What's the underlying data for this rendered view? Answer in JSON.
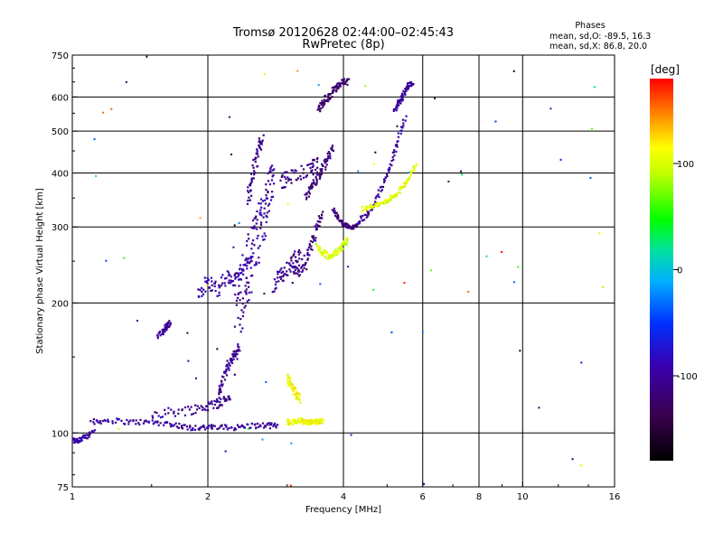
{
  "title": "Tromsø 20120628 02:44:00–02:45:43",
  "subtitle": "RwPretec (8p)",
  "stats": {
    "header": "Phases",
    "o_line": "mean, sd,O: -89.5, 16.3",
    "x_line": "mean, sd,X:  86.8, 20.0"
  },
  "colorbar": {
    "title": "[deg]",
    "range": [
      -180,
      180
    ],
    "ticks": [
      100,
      0,
      -100
    ],
    "tick_labels": [
      "100",
      "0",
      "-100"
    ]
  },
  "colors": {
    "background": "#ffffff",
    "axes": "#000000",
    "o_mode": "#1a3fe0",
    "x_mode": "#e8e800"
  },
  "chart_data": {
    "type": "scatter",
    "title": "Tromsø 20120628 02:44:00–02:45:43",
    "subtitle": "RwPretec (8p)",
    "xlabel": "Frequency [MHz]",
    "ylabel": "Stationary phase Virtual Height [km]",
    "xscale": "log",
    "yscale": "log",
    "xlim": [
      1,
      16
    ],
    "ylim": [
      75,
      750
    ],
    "xticks": [
      1,
      2,
      4,
      6,
      8,
      10,
      16
    ],
    "xtick_labels": [
      "1",
      "2",
      "4",
      "6",
      "8",
      "10",
      "16"
    ],
    "xgrid": [
      2,
      4,
      6,
      8,
      10
    ],
    "yticks": [
      75,
      100,
      200,
      300,
      400,
      500,
      600,
      750
    ],
    "ytick_labels": [
      "75",
      "100",
      "200",
      "300",
      "400",
      "500",
      "600",
      "750"
    ],
    "ygrid": [
      100,
      200,
      300,
      400,
      500,
      600
    ],
    "color_variable": "phase [deg]",
    "traces": [
      {
        "f": [
          1.0,
          1.02,
          1.05,
          1.08,
          1.12
        ],
        "h": [
          96,
          96,
          97,
          98,
          103
        ],
        "phase": -95,
        "spread": 1.5
      },
      {
        "f": [
          1.1,
          1.2,
          1.35,
          1.5,
          1.65,
          1.8,
          1.95,
          2.1,
          2.3,
          2.5,
          2.7,
          2.85
        ],
        "h": [
          106,
          107,
          106,
          106,
          105,
          103,
          103,
          103,
          103,
          104,
          104,
          104
        ],
        "phase": -100,
        "spread": 1.5
      },
      {
        "f": [
          1.5,
          1.7,
          1.9,
          2.05,
          2.15,
          2.25
        ],
        "h": [
          111,
          112,
          114,
          116,
          118,
          122
        ],
        "phase": -105,
        "spread": 3
      },
      {
        "f": [
          2.1,
          2.15,
          2.2,
          2.25,
          2.3,
          2.35
        ],
        "h": [
          120,
          130,
          140,
          148,
          152,
          158
        ],
        "phase": -105,
        "spread": 4
      },
      {
        "f": [
          1.55,
          1.6,
          1.62,
          1.65
        ],
        "h": [
          168,
          172,
          176,
          181
        ],
        "phase": -100,
        "spread": 3
      },
      {
        "f": [
          1.9,
          2.0,
          2.1,
          2.2,
          2.3,
          2.4,
          2.5
        ],
        "h": [
          210,
          225,
          215,
          230,
          225,
          240,
          250
        ],
        "phase": -95,
        "spread": 8
      },
      {
        "f": [
          2.3,
          2.35,
          2.4,
          2.45,
          2.5,
          2.55,
          2.6,
          2.65,
          2.7,
          2.75,
          2.8
        ],
        "h": [
          180,
          200,
          220,
          240,
          260,
          280,
          300,
          320,
          340,
          370,
          400
        ],
        "phase": -100,
        "spread": 45
      },
      {
        "f": [
          2.45,
          2.5,
          2.55,
          2.6,
          2.65
        ],
        "h": [
          350,
          380,
          420,
          460,
          490
        ],
        "phase": -110,
        "spread": 20
      },
      {
        "f": [
          2.8,
          2.9,
          3.0,
          3.1,
          3.2
        ],
        "h": [
          220,
          230,
          240,
          250,
          260
        ],
        "phase": -105,
        "spread": 10
      },
      {
        "f": [
          2.9,
          3.0,
          3.2,
          3.4,
          3.5
        ],
        "h": [
          380,
          390,
          400,
          410,
          420
        ],
        "phase": -110,
        "spread": 15
      },
      {
        "f": [
          3.1,
          3.2,
          3.3,
          3.4,
          3.5,
          3.6
        ],
        "h": [
          230,
          240,
          250,
          270,
          300,
          320
        ],
        "phase": -115,
        "spread": 10
      },
      {
        "f": [
          3.3,
          3.4,
          3.5,
          3.6,
          3.7,
          3.8
        ],
        "h": [
          350,
          370,
          390,
          410,
          430,
          460
        ],
        "phase": -120,
        "spread": 10
      },
      {
        "f": [
          3.5,
          3.6,
          3.7,
          3.8,
          3.9,
          4.0,
          4.1
        ],
        "h": [
          560,
          580,
          600,
          620,
          640,
          650,
          650
        ],
        "phase": -125,
        "spread": 12
      },
      {
        "f": [
          3.8,
          3.9,
          4.0,
          4.1,
          4.2,
          4.3
        ],
        "h": [
          330,
          315,
          305,
          300,
          300,
          302
        ],
        "phase": -115,
        "spread": 3
      },
      {
        "f": [
          4.3,
          4.5,
          4.7,
          4.9,
          5.1,
          5.3,
          5.5
        ],
        "h": [
          305,
          320,
          340,
          380,
          420,
          480,
          540
        ],
        "phase": -100,
        "spread": 6
      },
      {
        "f": [
          5.2,
          5.3,
          5.4,
          5.5,
          5.6,
          5.7
        ],
        "h": [
          560,
          580,
          600,
          620,
          640,
          650
        ],
        "phase": -100,
        "spread": 8
      },
      {
        "f": [
          4.4,
          4.6,
          4.8,
          5.0,
          5.2,
          5.4,
          5.6,
          5.8
        ],
        "h": [
          330,
          335,
          338,
          345,
          355,
          370,
          390,
          420
        ],
        "phase": 105,
        "spread": 4
      },
      {
        "f": [
          3.5,
          3.6,
          3.7,
          3.8,
          3.9,
          4.0,
          4.1
        ],
        "h": [
          270,
          262,
          258,
          260,
          265,
          272,
          280
        ],
        "phase": 100,
        "spread": 5
      },
      {
        "f": [
          3.0,
          3.1,
          3.2,
          3.3,
          3.4,
          3.5,
          3.6
        ],
        "h": [
          106,
          106,
          107,
          106,
          106,
          106,
          107
        ],
        "phase": 110,
        "spread": 1.5
      },
      {
        "f": [
          3.0,
          3.05,
          3.1,
          3.15,
          3.2
        ],
        "h": [
          135,
          130,
          126,
          123,
          120
        ],
        "phase": 110,
        "spread": 3
      }
    ],
    "annotations": {
      "o_mode_phase_mean": -89.5,
      "o_mode_phase_sd": 16.3,
      "x_mode_phase_mean": 86.8,
      "x_mode_phase_sd": 20.0
    }
  }
}
